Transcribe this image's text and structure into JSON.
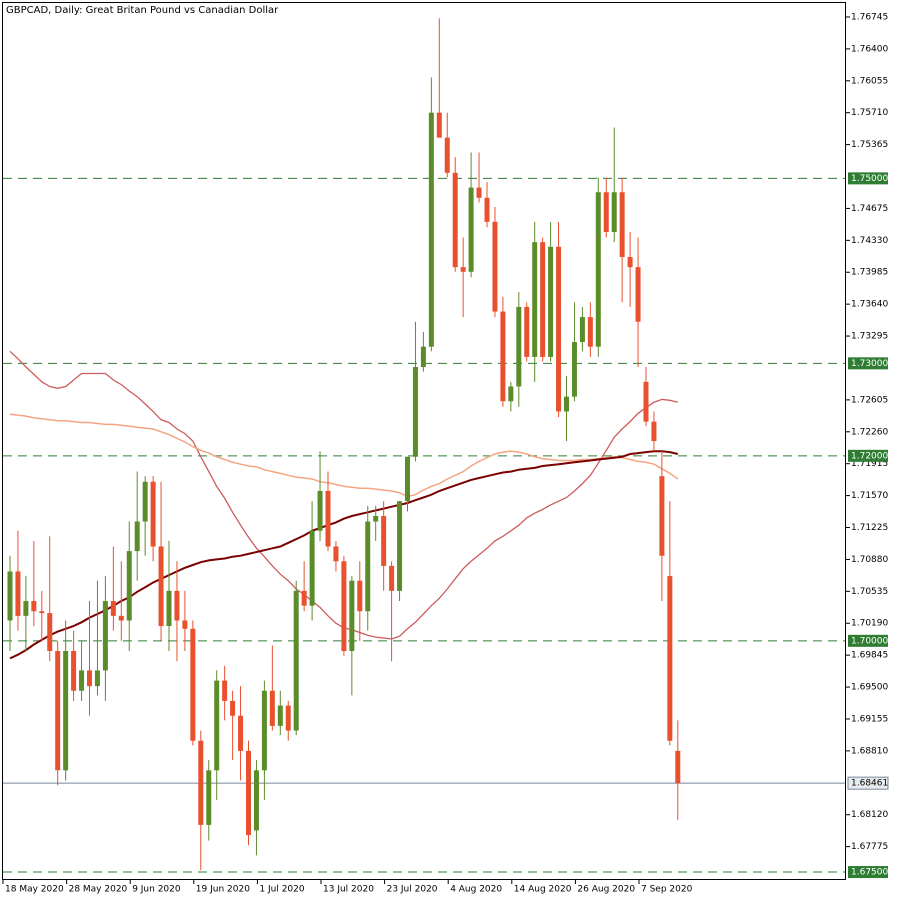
{
  "chart_data": {
    "type": "candlestick",
    "title": "GBPCAD, Daily:  Great Britan Pound vs Canadian Dollar",
    "categories": [
      "18 May 2020",
      null,
      null,
      null,
      null,
      null,
      null,
      null,
      "28 May 2020",
      null,
      null,
      null,
      null,
      null,
      null,
      null,
      "9 Jun 2020",
      null,
      null,
      null,
      null,
      null,
      null,
      null,
      "19 Jun 2020",
      null,
      null,
      null,
      null,
      null,
      null,
      null,
      "1 Jul 2020",
      null,
      null,
      null,
      null,
      null,
      null,
      null,
      "13 Jul 2020",
      null,
      null,
      null,
      null,
      null,
      null,
      null,
      "23 Jul 2020",
      null,
      null,
      null,
      null,
      null,
      null,
      null,
      "4 Aug 2020",
      null,
      null,
      null,
      null,
      null,
      null,
      null,
      "14 Aug 2020",
      null,
      null,
      null,
      null,
      null,
      null,
      null,
      "26 Aug 2020",
      null,
      null,
      null,
      null,
      null,
      null,
      null,
      "7 Sep 2020",
      null,
      null,
      null,
      null
    ],
    "open": [
      1.7022,
      1.7075,
      1.7027,
      1.7043,
      1.7032,
      1.703,
      1.6989,
      1.686,
      1.6989,
      1.6946,
      1.6968,
      1.6951,
      1.6968,
      1.7043,
      1.7027,
      1.7022,
      1.7097,
      1.7129,
      1.7172,
      1.7102,
      1.7016,
      1.7054,
      1.7022,
      1.7013,
      1.6892,
      1.6801,
      1.686,
      1.6957,
      1.6935,
      1.6919,
      1.6881,
      1.6795,
      1.686,
      1.6946,
      1.6908,
      1.693,
      1.6903,
      1.7054,
      1.7038,
      1.7119,
      1.7162,
      1.7102,
      1.7086,
      1.6989,
      1.7065,
      1.7032,
      1.7129,
      1.7135,
      1.7081,
      1.7054,
      1.7151,
      1.7199,
      1.7296,
      1.7318,
      1.7571,
      1.7544,
      1.7506,
      1.7404,
      1.7399,
      1.749,
      1.7479,
      1.7453,
      1.7356,
      1.7259,
      1.7275,
      1.7361,
      1.7307,
      1.7431,
      1.7307,
      1.7426,
      1.7248,
      1.7264,
      1.7323,
      1.735,
      1.7318,
      1.7485,
      1.7442,
      1.7485,
      1.7415,
      1.7404,
      1.728,
      1.7237,
      1.7178,
      1.707,
      1.6881
    ],
    "high": [
      1.7092,
      1.7119,
      1.707,
      1.7108,
      1.7054,
      1.7113,
      1.7,
      1.7022,
      1.7011,
      1.7,
      1.7043,
      1.7065,
      1.707,
      1.7102,
      1.7086,
      1.7129,
      1.7183,
      1.7178,
      1.7178,
      1.7172,
      1.7108,
      1.7086,
      1.7054,
      1.7022,
      1.6903,
      1.6871,
      1.6968,
      1.6973,
      1.6946,
      1.6951,
      1.6892,
      1.6871,
      1.6957,
      1.6995,
      1.6946,
      1.6935,
      1.7065,
      1.7086,
      1.7151,
      1.7205,
      1.7183,
      1.7108,
      1.7092,
      1.707,
      1.7086,
      1.7146,
      1.7146,
      1.7151,
      1.7086,
      1.7151,
      1.7199,
      1.7345,
      1.7334,
      1.7609,
      1.7673,
      1.7571,
      1.7523,
      1.7436,
      1.7528,
      1.7528,
      1.7496,
      1.7469,
      1.7372,
      1.728,
      1.7377,
      1.7366,
      1.7453,
      1.7436,
      1.7453,
      1.7453,
      1.7286,
      1.7366,
      1.7361,
      1.7366,
      1.7501,
      1.7501,
      1.7555,
      1.7501,
      1.7442,
      1.7436,
      1.7296,
      1.7248,
      1.7205,
      1.7151,
      1.6914
    ],
    "low": [
      1.6989,
      1.7011,
      1.6989,
      1.7016,
      1.7,
      1.6978,
      1.6844,
      1.6849,
      1.6935,
      1.6935,
      1.6919,
      1.6941,
      1.6935,
      1.7011,
      1.7,
      1.6989,
      1.7065,
      1.7092,
      1.7086,
      1.7,
      1.6989,
      1.6978,
      1.6989,
      1.6887,
      1.6752,
      1.6784,
      1.6828,
      1.6914,
      1.6871,
      1.6849,
      1.6779,
      1.6768,
      1.6828,
      1.6903,
      1.6898,
      1.6892,
      1.6898,
      1.7032,
      1.7022,
      1.7108,
      1.7097,
      1.7075,
      1.6984,
      1.6941,
      1.7,
      1.7011,
      1.7108,
      1.7054,
      1.6978,
      1.7043,
      1.714,
      1.7194,
      1.7291,
      1.7313,
      1.7544,
      1.7501,
      1.7399,
      1.735,
      1.7393,
      1.7474,
      1.7447,
      1.735,
      1.7253,
      1.7248,
      1.7253,
      1.7302,
      1.728,
      1.7302,
      1.7302,
      1.7242,
      1.7216,
      1.7259,
      1.7313,
      1.7307,
      1.7307,
      1.7436,
      1.7431,
      1.7366,
      1.7361,
      1.7296,
      1.7232,
      1.7205,
      1.7043,
      1.6887,
      1.6806
    ],
    "close": [
      1.7075,
      1.7027,
      1.7043,
      1.7032,
      1.703,
      1.6989,
      1.686,
      1.6989,
      1.6946,
      1.6968,
      1.6951,
      1.6968,
      1.7043,
      1.7027,
      1.7022,
      1.7097,
      1.7129,
      1.7172,
      1.7102,
      1.7016,
      1.7054,
      1.7022,
      1.7013,
      1.6892,
      1.6801,
      1.686,
      1.6957,
      1.6935,
      1.6919,
      1.6881,
      1.679,
      1.686,
      1.6946,
      1.6908,
      1.693,
      1.6903,
      1.7054,
      1.7038,
      1.7119,
      1.7162,
      1.7102,
      1.7086,
      1.6989,
      1.7065,
      1.7032,
      1.7129,
      1.7135,
      1.7081,
      1.7054,
      1.7151,
      1.7199,
      1.7296,
      1.7318,
      1.7571,
      1.7544,
      1.7506,
      1.7404,
      1.7399,
      1.749,
      1.7479,
      1.7453,
      1.7356,
      1.7259,
      1.7275,
      1.7361,
      1.7307,
      1.7431,
      1.7307,
      1.7426,
      1.7248,
      1.7264,
      1.7323,
      1.735,
      1.7318,
      1.7485,
      1.7442,
      1.7485,
      1.7415,
      1.7404,
      1.7345,
      1.7237,
      1.7216,
      1.7092,
      1.6892,
      1.68461
    ],
    "up_color": "#5b8c2a",
    "down_color": "#e8502e",
    "lines": [
      {
        "color": "#cd5c5c",
        "width": 1.3,
        "values": [
          1.7313,
          1.7305,
          1.7296,
          1.7288,
          1.728,
          1.7275,
          1.7273,
          1.7275,
          1.7282,
          1.7289,
          1.7289,
          1.7289,
          1.7289,
          1.7282,
          1.7277,
          1.727,
          1.7264,
          1.7256,
          1.7248,
          1.7239,
          1.7236,
          1.7229,
          1.7224,
          1.7216,
          1.7199,
          1.7183,
          1.7167,
          1.7154,
          1.7139,
          1.7125,
          1.7112,
          1.71,
          1.7091,
          1.7081,
          1.7072,
          1.7065,
          1.7056,
          1.705,
          1.7043,
          1.7036,
          1.7027,
          1.7019,
          1.7014,
          1.7012,
          1.7009,
          1.7006,
          1.7004,
          1.7003,
          1.7002,
          1.7005,
          1.7013,
          1.702,
          1.7029,
          1.7038,
          1.7046,
          1.7056,
          1.7067,
          1.7078,
          1.7086,
          1.7093,
          1.71,
          1.7108,
          1.7113,
          1.7119,
          1.7125,
          1.7133,
          1.7138,
          1.7142,
          1.7147,
          1.7151,
          1.7155,
          1.7162,
          1.717,
          1.7179,
          1.7192,
          1.7206,
          1.722,
          1.7229,
          1.7237,
          1.7246,
          1.7252,
          1.7258,
          1.7261,
          1.726,
          1.7258
        ]
      },
      {
        "color": "#f4a582",
        "width": 1.5,
        "values": [
          1.7245,
          1.7244,
          1.7243,
          1.7241,
          1.724,
          1.7239,
          1.7238,
          1.7238,
          1.7237,
          1.7236,
          1.7236,
          1.7235,
          1.7234,
          1.7234,
          1.7233,
          1.7232,
          1.7231,
          1.723,
          1.7229,
          1.7226,
          1.7223,
          1.7219,
          1.7215,
          1.721,
          1.7206,
          1.7203,
          1.7199,
          1.7196,
          1.7193,
          1.7191,
          1.7189,
          1.7188,
          1.7185,
          1.7183,
          1.7181,
          1.7179,
          1.7177,
          1.7176,
          1.7175,
          1.7172,
          1.7171,
          1.7169,
          1.7167,
          1.7166,
          1.7165,
          1.7165,
          1.7164,
          1.7163,
          1.7162,
          1.716,
          1.7156,
          1.7158,
          1.7163,
          1.7167,
          1.717,
          1.7175,
          1.7179,
          1.7183,
          1.7189,
          1.7194,
          1.7198,
          1.7202,
          1.7204,
          1.7205,
          1.7204,
          1.7202,
          1.7199,
          1.7197,
          1.7196,
          1.7195,
          1.7195,
          1.7195,
          1.7196,
          1.7196,
          1.7197,
          1.7198,
          1.7199,
          1.7198,
          1.7196,
          1.7194,
          1.7193,
          1.7191,
          1.7186,
          1.7181,
          1.7175
        ]
      },
      {
        "color": "#7b0000",
        "width": 2,
        "values": [
          1.6981,
          1.6985,
          1.699,
          1.6996,
          1.7001,
          1.7006,
          1.701,
          1.7013,
          1.7016,
          1.702,
          1.7025,
          1.7029,
          1.7033,
          1.7038,
          1.7043,
          1.7047,
          1.7053,
          1.7058,
          1.7063,
          1.7067,
          1.7071,
          1.7075,
          1.7079,
          1.7082,
          1.7085,
          1.7087,
          1.7088,
          1.7089,
          1.7091,
          1.7092,
          1.7094,
          1.7096,
          1.7098,
          1.71,
          1.7102,
          1.7106,
          1.711,
          1.7114,
          1.7119,
          1.7122,
          1.7125,
          1.7128,
          1.7132,
          1.7135,
          1.7137,
          1.7139,
          1.7141,
          1.7143,
          1.7145,
          1.7147,
          1.7149,
          1.7152,
          1.7155,
          1.7158,
          1.7162,
          1.7165,
          1.7168,
          1.7171,
          1.7174,
          1.7176,
          1.7178,
          1.718,
          1.7182,
          1.7183,
          1.7185,
          1.7186,
          1.7187,
          1.7189,
          1.719,
          1.7191,
          1.7192,
          1.7193,
          1.7194,
          1.7195,
          1.7196,
          1.7197,
          1.7198,
          1.7199,
          1.7202,
          1.7203,
          1.7204,
          1.7205,
          1.7205,
          1.7204,
          1.7202
        ]
      }
    ],
    "levels": [
      {
        "value": 1.75,
        "label": "1.75000"
      },
      {
        "value": 1.73,
        "label": "1.73000"
      },
      {
        "value": 1.72,
        "label": "1.72000"
      },
      {
        "value": 1.7,
        "label": "1.70000"
      },
      {
        "value": 1.675,
        "label": "1.67500"
      }
    ],
    "level_color": "#2e7d32",
    "last_price": {
      "value": 1.68461,
      "label": "1.68461"
    },
    "last_price_color": "#778899",
    "ylim": [
      1.67414,
      1.76896
    ],
    "yticks": [
      {
        "value": 1.76745,
        "label": "1.76745"
      },
      {
        "value": 1.764,
        "label": "1.76400"
      },
      {
        "value": 1.76055,
        "label": "1.76055"
      },
      {
        "value": 1.7571,
        "label": "1.75710"
      },
      {
        "value": 1.75365,
        "label": "1.75365"
      },
      {
        "value": 1.74675,
        "label": "1.74675"
      },
      {
        "value": 1.7433,
        "label": "1.74330"
      },
      {
        "value": 1.73985,
        "label": "1.73985"
      },
      {
        "value": 1.7364,
        "label": "1.73640"
      },
      {
        "value": 1.73295,
        "label": "1.73295"
      },
      {
        "value": 1.72605,
        "label": "1.72605"
      },
      {
        "value": 1.7226,
        "label": "1.72260"
      },
      {
        "value": 1.71915,
        "label": "1.71915"
      },
      {
        "value": 1.7157,
        "label": "1.71570"
      },
      {
        "value": 1.71225,
        "label": "1.71225"
      },
      {
        "value": 1.7088,
        "label": "1.70880"
      },
      {
        "value": 1.70535,
        "label": "1.70535"
      },
      {
        "value": 1.7019,
        "label": "1.70190"
      },
      {
        "value": 1.69845,
        "label": "1.69845"
      },
      {
        "value": 1.695,
        "label": "1.69500"
      },
      {
        "value": 1.69155,
        "label": "1.69155"
      },
      {
        "value": 1.6881,
        "label": "1.68810"
      },
      {
        "value": 1.6812,
        "label": "1.68120"
      },
      {
        "value": 1.67775,
        "label": "1.67775"
      }
    ],
    "grid": false
  }
}
